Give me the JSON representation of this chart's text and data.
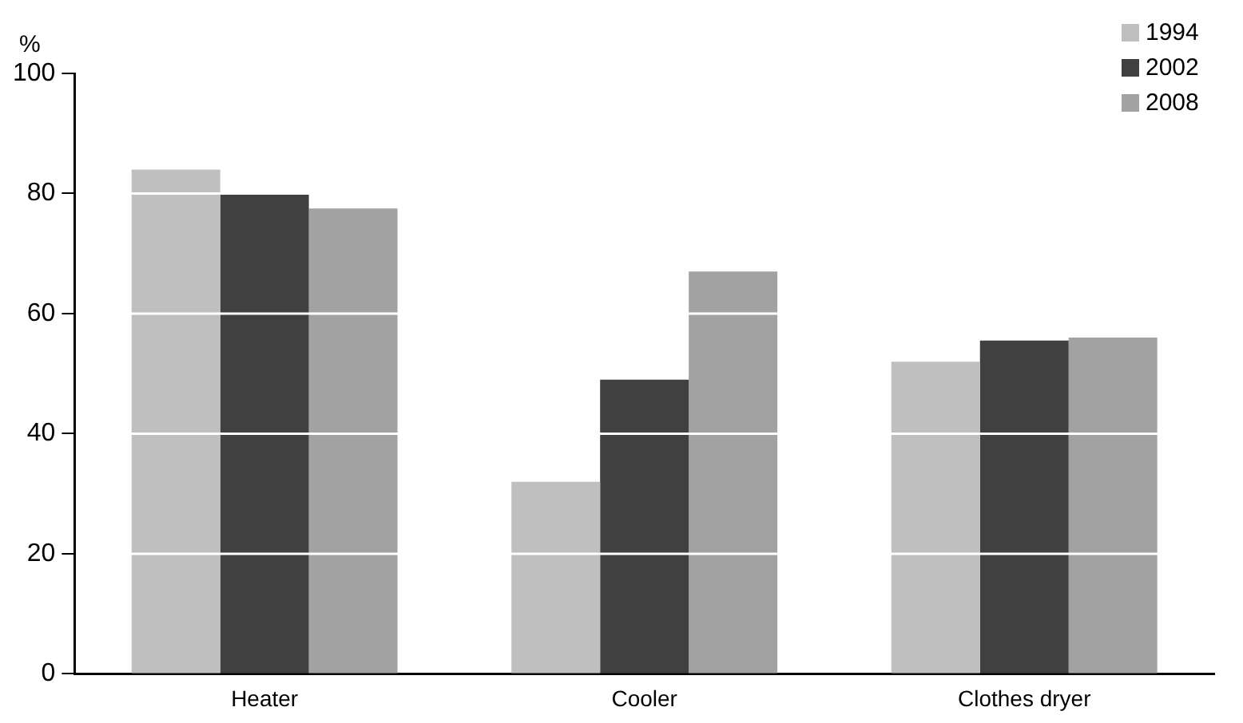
{
  "chart_data": {
    "type": "bar",
    "ylabel": "%",
    "categories": [
      "Heater",
      "Cooler",
      "Clothes dryer"
    ],
    "series": [
      {
        "name": "1994",
        "color": "#bfbfbf",
        "values": [
          84,
          32,
          52
        ]
      },
      {
        "name": "2002",
        "color": "#404040",
        "values": [
          80,
          49,
          55.5
        ]
      },
      {
        "name": "2008",
        "color": "#a2a2a2",
        "values": [
          77.5,
          67,
          56
        ]
      }
    ],
    "ylim": [
      0,
      100
    ],
    "yticks": [
      0,
      20,
      40,
      60,
      80,
      100
    ],
    "grid": "y",
    "legend": "top right"
  }
}
